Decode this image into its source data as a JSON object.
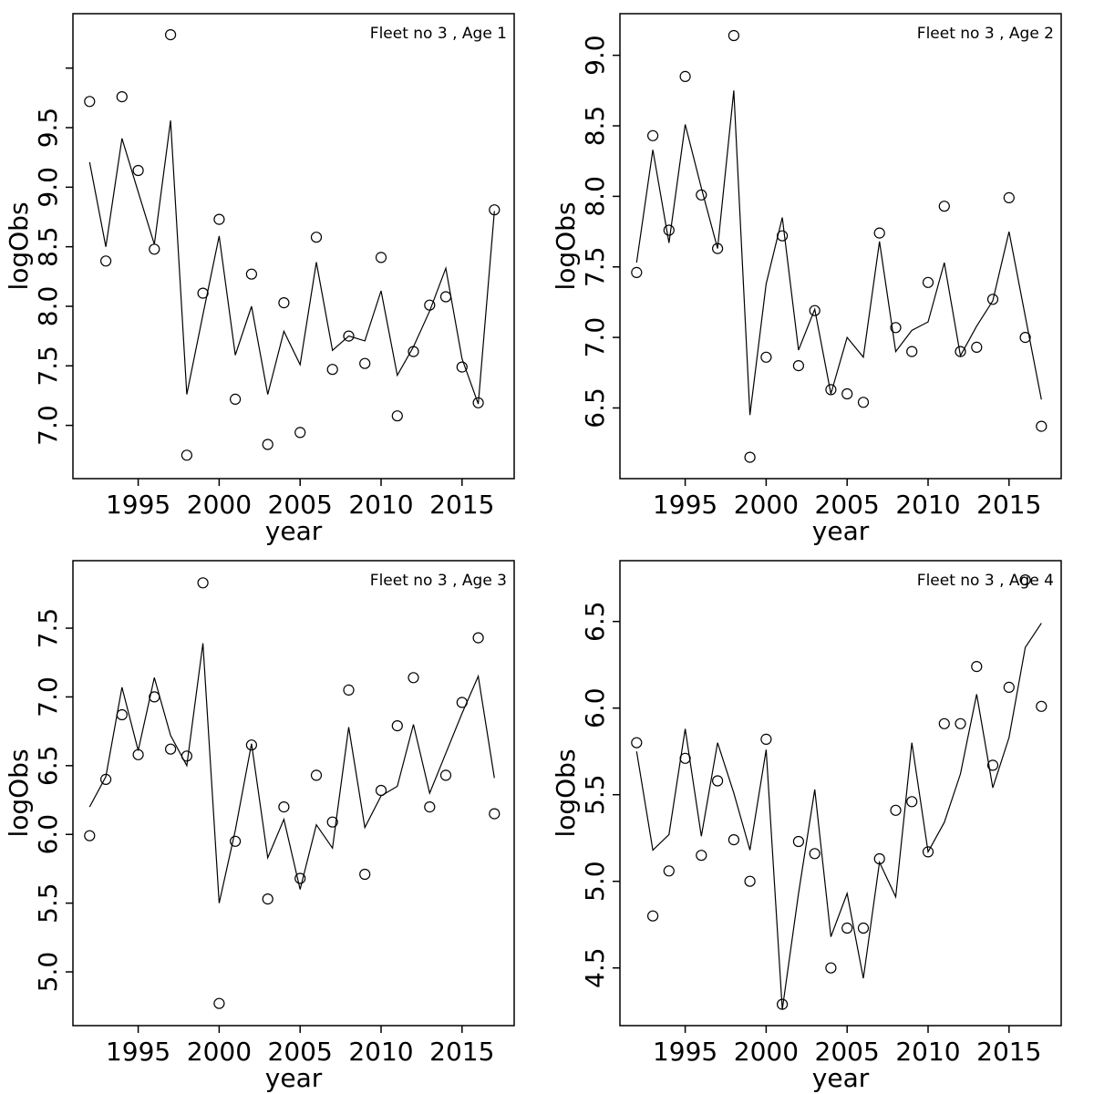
{
  "page": {
    "background": "#ffffff",
    "ink_color": "#000000",
    "layout": "2x2 grid of scatter-plus-fitted-line panels"
  },
  "chart_data": [
    {
      "type": "line",
      "title": "Fleet no 3 , Age 1",
      "xlabel": "year",
      "ylabel": "logObs",
      "x": [
        1992,
        1993,
        1994,
        1995,
        1996,
        1997,
        1998,
        1999,
        2000,
        2001,
        2002,
        2003,
        2004,
        2005,
        2006,
        2007,
        2008,
        2009,
        2010,
        2011,
        2012,
        2013,
        2014,
        2015,
        2016,
        2017
      ],
      "series": [
        {
          "name": "observed",
          "style": "open-circle-points",
          "values": [
            9.72,
            8.38,
            9.76,
            9.14,
            8.48,
            10.28,
            6.75,
            8.11,
            8.73,
            7.22,
            8.27,
            6.84,
            8.03,
            6.94,
            8.58,
            7.47,
            7.75,
            7.52,
            8.41,
            7.08,
            7.62,
            8.01,
            8.08,
            7.49,
            7.19,
            8.81
          ]
        },
        {
          "name": "fitted",
          "style": "solid-line",
          "values": [
            9.21,
            8.5,
            9.41,
            8.96,
            8.52,
            9.56,
            7.26,
            7.93,
            8.59,
            7.59,
            8.0,
            7.26,
            7.79,
            7.51,
            8.37,
            7.63,
            7.75,
            7.71,
            8.13,
            7.42,
            7.66,
            7.96,
            8.32,
            7.56,
            7.18,
            8.8
          ]
        }
      ],
      "xlim": [
        1990.97,
        2018.22
      ],
      "ylim": [
        6.553,
        10.457
      ],
      "xticks": [
        1995,
        2000,
        2005,
        2010,
        2015
      ],
      "yticks": [
        7.0,
        7.5,
        8.0,
        8.5,
        9.0,
        9.5
      ],
      "unlabeled_yticks": [
        10.0
      ],
      "grid": false,
      "legend": "none"
    },
    {
      "type": "line",
      "title": "Fleet no 3 , Age 2",
      "xlabel": "year",
      "ylabel": "logObs",
      "x": [
        1992,
        1993,
        1994,
        1995,
        1996,
        1997,
        1998,
        1999,
        2000,
        2001,
        2002,
        2003,
        2004,
        2005,
        2006,
        2007,
        2008,
        2009,
        2010,
        2011,
        2012,
        2013,
        2014,
        2015,
        2016,
        2017
      ],
      "series": [
        {
          "name": "observed",
          "style": "open-circle-points",
          "values": [
            7.46,
            8.43,
            7.76,
            8.85,
            8.01,
            7.63,
            9.14,
            6.15,
            6.86,
            7.72,
            6.8,
            7.19,
            6.63,
            6.6,
            6.54,
            7.74,
            7.07,
            6.9,
            7.39,
            7.93,
            6.9,
            6.93,
            7.27,
            7.99,
            7.0,
            6.37
          ]
        },
        {
          "name": "fitted",
          "style": "solid-line",
          "values": [
            7.53,
            8.33,
            7.67,
            8.51,
            8.06,
            7.63,
            8.75,
            6.45,
            7.38,
            7.85,
            6.91,
            7.2,
            6.6,
            7.0,
            6.86,
            7.68,
            6.9,
            7.05,
            7.11,
            7.53,
            6.87,
            7.08,
            7.26,
            7.75,
            7.15,
            6.56
          ]
        }
      ],
      "xlim": [
        1990.97,
        2018.22
      ],
      "ylim": [
        5.999,
        9.295
      ],
      "xticks": [
        1995,
        2000,
        2005,
        2010,
        2015
      ],
      "yticks": [
        6.5,
        7.0,
        7.5,
        8.0,
        8.5,
        9.0
      ],
      "unlabeled_yticks": [],
      "grid": false,
      "legend": "none"
    },
    {
      "type": "line",
      "title": "Fleet no 3 , Age 3",
      "xlabel": "year",
      "ylabel": "logObs",
      "x": [
        1992,
        1993,
        1994,
        1995,
        1996,
        1997,
        1998,
        1999,
        2000,
        2001,
        2002,
        2003,
        2004,
        2005,
        2006,
        2007,
        2008,
        2009,
        2010,
        2011,
        2012,
        2013,
        2014,
        2015,
        2016,
        2017
      ],
      "series": [
        {
          "name": "observed",
          "style": "open-circle-points",
          "values": [
            5.99,
            6.4,
            6.87,
            6.58,
            7.0,
            6.62,
            6.57,
            7.83,
            4.77,
            5.95,
            6.65,
            5.53,
            6.2,
            5.68,
            6.43,
            6.09,
            7.05,
            5.71,
            6.32,
            6.79,
            7.14,
            6.2,
            6.43,
            6.96,
            7.43,
            6.15
          ]
        },
        {
          "name": "fitted",
          "style": "solid-line",
          "values": [
            6.2,
            6.42,
            7.07,
            6.61,
            7.14,
            6.72,
            6.5,
            7.39,
            5.5,
            6.03,
            6.66,
            5.83,
            6.11,
            5.6,
            6.07,
            5.9,
            6.78,
            6.05,
            6.28,
            6.35,
            6.8,
            6.3,
            6.59,
            6.88,
            7.15,
            6.41
          ]
        }
      ],
      "xlim": [
        1990.97,
        2018.22
      ],
      "ylim": [
        4.609,
        7.991
      ],
      "xticks": [
        1995,
        2000,
        2005,
        2010,
        2015
      ],
      "yticks": [
        5.0,
        5.5,
        6.0,
        6.5,
        7.0,
        7.5
      ],
      "unlabeled_yticks": [],
      "grid": false,
      "legend": "none"
    },
    {
      "type": "line",
      "title": "Fleet no 3 , Age 4",
      "xlabel": "year",
      "ylabel": "logObs",
      "x": [
        1992,
        1993,
        1994,
        1995,
        1996,
        1997,
        1998,
        1999,
        2000,
        2001,
        2002,
        2003,
        2004,
        2005,
        2006,
        2007,
        2008,
        2009,
        2010,
        2011,
        2012,
        2013,
        2014,
        2015,
        2016,
        2017
      ],
      "series": [
        {
          "name": "observed",
          "style": "open-circle-points",
          "values": [
            5.8,
            4.8,
            5.06,
            5.71,
            5.15,
            5.58,
            5.24,
            5.0,
            5.82,
            4.29,
            5.23,
            5.16,
            4.5,
            4.73,
            4.73,
            5.13,
            5.41,
            5.46,
            5.17,
            5.91,
            5.91,
            6.24,
            5.67,
            6.12,
            6.74,
            6.01
          ]
        },
        {
          "name": "fitted",
          "style": "solid-line",
          "values": [
            5.75,
            5.18,
            5.27,
            5.88,
            5.26,
            5.8,
            5.51,
            5.18,
            5.76,
            4.26,
            4.93,
            5.53,
            4.68,
            4.93,
            4.44,
            5.11,
            4.91,
            5.8,
            5.17,
            5.34,
            5.62,
            6.08,
            5.54,
            5.83,
            6.35,
            6.49
          ]
        }
      ],
      "xlim": [
        1990.97,
        2018.22
      ],
      "ylim": [
        4.167,
        6.851
      ],
      "xticks": [
        1995,
        2000,
        2005,
        2010,
        2015
      ],
      "yticks": [
        4.5,
        5.0,
        5.5,
        6.0,
        6.5
      ],
      "unlabeled_yticks": [],
      "grid": false,
      "legend": "none"
    }
  ]
}
